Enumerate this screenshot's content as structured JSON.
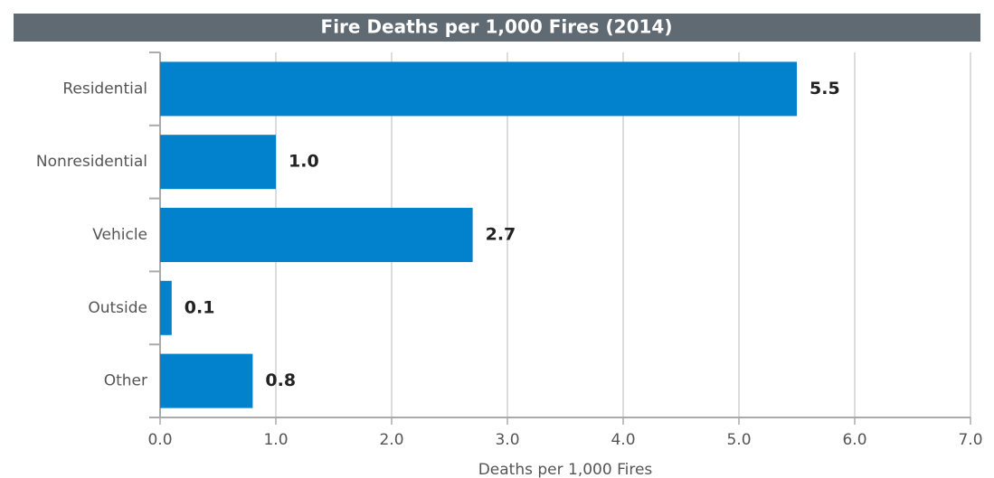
{
  "chart_data": {
    "type": "bar",
    "orientation": "horizontal",
    "title": "Fire Deaths per 1,000 Fires (2014)",
    "xlabel": "Deaths per 1,000 Fires",
    "categories": [
      "Residential",
      "Nonresidential",
      "Vehicle",
      "Outside",
      "Other"
    ],
    "values": [
      5.5,
      1.0,
      2.7,
      0.1,
      0.8
    ],
    "value_labels": [
      "5.5",
      "1.0",
      "2.7",
      "0.1",
      "0.8"
    ],
    "color": "#0282cc",
    "xlim": [
      0,
      7
    ],
    "xticks": [
      {
        "value": 0,
        "label": "0.0"
      },
      {
        "value": 1,
        "label": "1.0"
      },
      {
        "value": 2,
        "label": "2.0"
      },
      {
        "value": 3,
        "label": "3.0"
      },
      {
        "value": 4,
        "label": "4.0"
      },
      {
        "value": 5,
        "label": "5.0"
      },
      {
        "value": 6,
        "label": "6.0"
      },
      {
        "value": 7,
        "label": "7.0"
      }
    ],
    "grid": true
  }
}
